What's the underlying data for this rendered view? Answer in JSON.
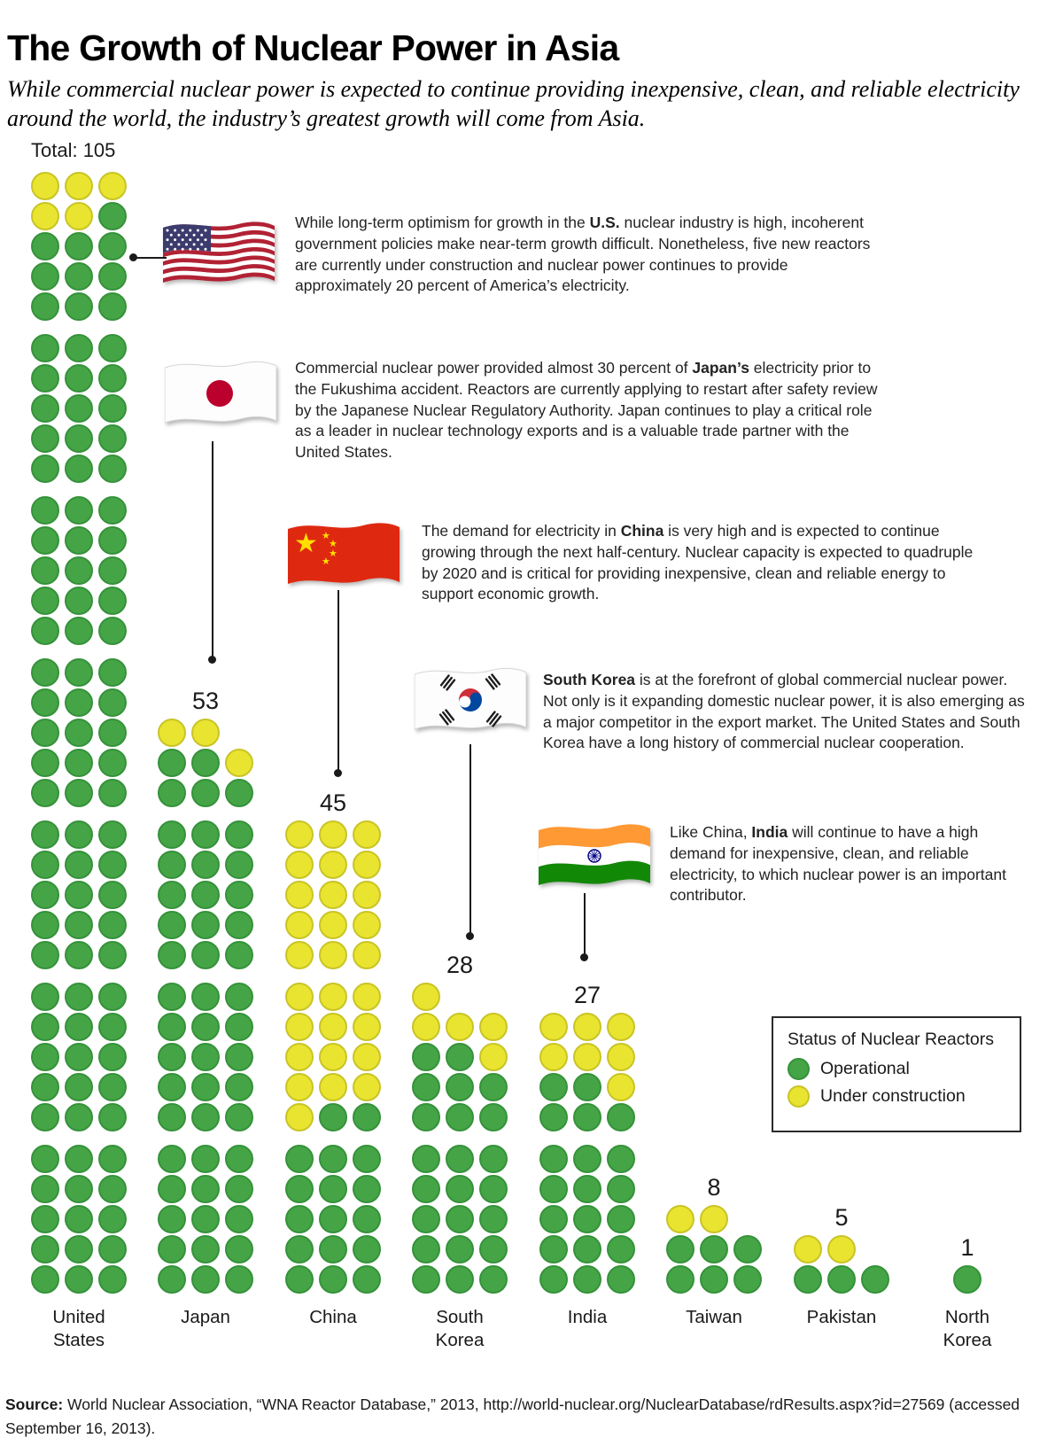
{
  "title": "The Growth of Nuclear Power in Asia",
  "subtitle": "While commercial nuclear power is expected to continue providing inexpensive, clean, and reliable electricity around the world, the industry’s greatest growth will come from Asia.",
  "colors": {
    "operational": "#45a546",
    "operational_stroke": "#35923a",
    "under_construction": "#e9e42f",
    "under_construction_stroke": "#c9c426",
    "text": "#231f20"
  },
  "legend": {
    "title": "Status of Nuclear Reactors",
    "items": [
      {
        "label": "Operational",
        "color": "#45a546"
      },
      {
        "label": "Under construction",
        "color": "#e9e42f"
      }
    ]
  },
  "chart_data": {
    "type": "pictograph",
    "title": "The Growth of Nuclear Power in Asia",
    "unit": "1 circle = 1 nuclear reactor",
    "legend_title": "Status of Nuclear Reactors",
    "statuses": {
      "G": "Operational",
      "Y": "Under construction"
    },
    "countries": [
      {
        "name": "United States",
        "label_lines": [
          "United",
          "States"
        ],
        "count_label": "Total: 105",
        "total": 105,
        "operational": 100,
        "under_construction": 5,
        "rows": [
          "YYY",
          "YYG",
          "GGG",
          "GGG",
          "GGG",
          "GGG",
          "GGG",
          "GGG",
          "GGG",
          "GGG",
          "GGG",
          "GGG",
          "GGG",
          "GGG",
          "GGG",
          "GGG",
          "GGG",
          "GGG",
          "GGG",
          "GGG",
          "GGG",
          "GGG",
          "GGG",
          "GGG",
          "GGG",
          "GGG",
          "GGG",
          "GGG",
          "GGG",
          "GGG",
          "GGG",
          "GGG",
          "GGG",
          "GGG",
          "GGG"
        ]
      },
      {
        "name": "Japan",
        "label_lines": [
          "Japan"
        ],
        "count_label": "53",
        "total": 53,
        "operational": 50,
        "under_construction": 3,
        "rows": [
          "YY",
          "GGY",
          "GGG",
          "GGG",
          "GGG",
          "GGG",
          "GGG",
          "GGG",
          "GGG",
          "GGG",
          "GGG",
          "GGG",
          "GGG",
          "GGG",
          "GGG",
          "GGG",
          "GGG",
          "GGG"
        ]
      },
      {
        "name": "China",
        "label_lines": [
          "China"
        ],
        "count_label": "45",
        "total": 45,
        "operational": 17,
        "under_construction": 28,
        "rows": [
          "YYY",
          "YYY",
          "YYY",
          "YYY",
          "YYY",
          "YYY",
          "YYY",
          "YYY",
          "YYY",
          "YGG",
          "GGG",
          "GGG",
          "GGG",
          "GGG",
          "GGG"
        ]
      },
      {
        "name": "South Korea",
        "label_lines": [
          "South",
          "Korea"
        ],
        "count_label": "28",
        "total": 28,
        "operational": 23,
        "under_construction": 5,
        "rows": [
          "Y",
          "YYY",
          "GGY",
          "GGG",
          "GGG",
          "GGG",
          "GGG",
          "GGG",
          "GGG",
          "GGG"
        ]
      },
      {
        "name": "India",
        "label_lines": [
          "India"
        ],
        "count_label": "27",
        "total": 27,
        "operational": 20,
        "under_construction": 7,
        "rows": [
          "YYY",
          "YYY",
          "GGY",
          "GGG",
          "GGG",
          "GGG",
          "GGG",
          "GGG",
          "GGG"
        ]
      },
      {
        "name": "Taiwan",
        "label_lines": [
          "Taiwan"
        ],
        "count_label": "8",
        "total": 8,
        "operational": 6,
        "under_construction": 2,
        "rows": [
          "YY",
          "GGG",
          "GGG"
        ]
      },
      {
        "name": "Pakistan",
        "label_lines": [
          "Pakistan"
        ],
        "count_label": "5",
        "total": 5,
        "operational": 3,
        "under_construction": 2,
        "rows": [
          "YY",
          "GGG"
        ]
      },
      {
        "name": "North Korea",
        "label_lines": [
          "North",
          "Korea"
        ],
        "count_label": "1",
        "total": 1,
        "operational": 1,
        "under_construction": 0,
        "rows": [
          "G"
        ]
      }
    ]
  },
  "notes": [
    {
      "country": "United States",
      "flag_icon": "us-flag-icon",
      "segments": [
        {
          "t": "While long-term optimism for growth in the "
        },
        {
          "t": "U.S.",
          "b": true
        },
        {
          "t": " nuclear industry is high, incoherent government policies make near-term growth difficult. Nonetheless, five new reactors are currently under construction and nuclear power continues to provide approximately 20 percent of America’s electricity."
        }
      ]
    },
    {
      "country": "Japan",
      "flag_icon": "japan-flag-icon",
      "segments": [
        {
          "t": "Commercial nuclear power provided almost 30 percent of "
        },
        {
          "t": "Japan’s",
          "b": true
        },
        {
          "t": " electricity prior to the Fukushima accident. Reactors are currently applying to restart after safety review by the Japanese Nuclear Regulatory Authority. Japan continues to play a critical role as a leader in nuclear technology exports and is a valuable trade partner with the United States."
        }
      ]
    },
    {
      "country": "China",
      "flag_icon": "china-flag-icon",
      "segments": [
        {
          "t": "The demand for electricity in "
        },
        {
          "t": "China",
          "b": true
        },
        {
          "t": " is very high and is expected to continue growing through the next half-century. Nuclear capacity is expected to quadruple by 2020 and is critical for providing inexpensive, clean and reliable energy to support economic growth."
        }
      ]
    },
    {
      "country": "South Korea",
      "flag_icon": "south-korea-flag-icon",
      "segments": [
        {
          "t": "South Korea",
          "b": true
        },
        {
          "t": " is at the forefront of global commercial nuclear power. Not only is it expanding domestic nuclear power, it is also emerging as a major competitor in the export market. The United States and South Korea have a long history of commercial nuclear cooperation."
        }
      ]
    },
    {
      "country": "India",
      "flag_icon": "india-flag-icon",
      "segments": [
        {
          "t": "Like China, "
        },
        {
          "t": "India",
          "b": true
        },
        {
          "t": " will continue to have a high demand for inexpensive, clean, and reliable electricity, to which nuclear power is an important contributor."
        }
      ]
    }
  ],
  "source": {
    "prefix": "Source:",
    "text": " World Nuclear Association, “WNA Reactor Database,” 2013, http://world-nuclear.org/NuclearDatabase/rdResults.aspx?id=27569 (accessed September 16, 2013)."
  }
}
